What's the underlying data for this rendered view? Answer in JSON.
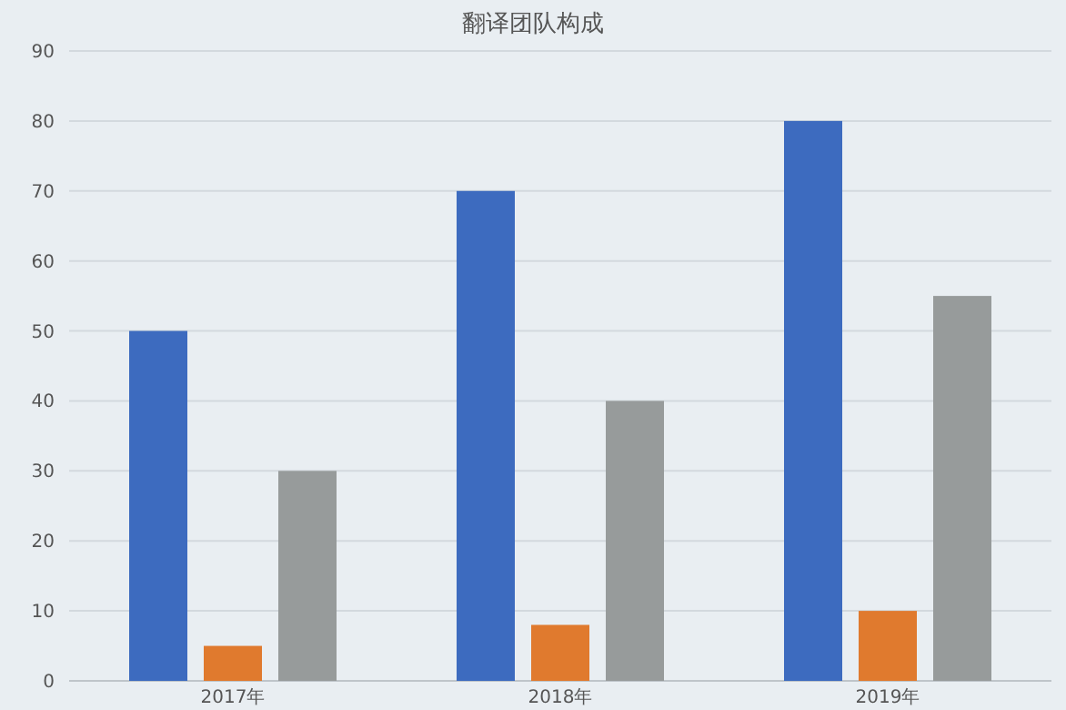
{
  "chart_data": {
    "type": "bar",
    "title": "翻译团队构成",
    "categories": [
      "2017年",
      "2018年",
      "2019年"
    ],
    "series": [
      {
        "color": "#3d6bbf",
        "values": [
          50,
          70,
          80
        ]
      },
      {
        "color": "#e07a2e",
        "values": [
          5,
          8,
          10
        ]
      },
      {
        "color": "#979b9b",
        "values": [
          30,
          40,
          55
        ]
      }
    ],
    "ylim": [
      0,
      90
    ],
    "yticks": [
      0,
      10,
      20,
      30,
      40,
      50,
      60,
      70,
      80,
      90
    ],
    "grid": "y"
  }
}
